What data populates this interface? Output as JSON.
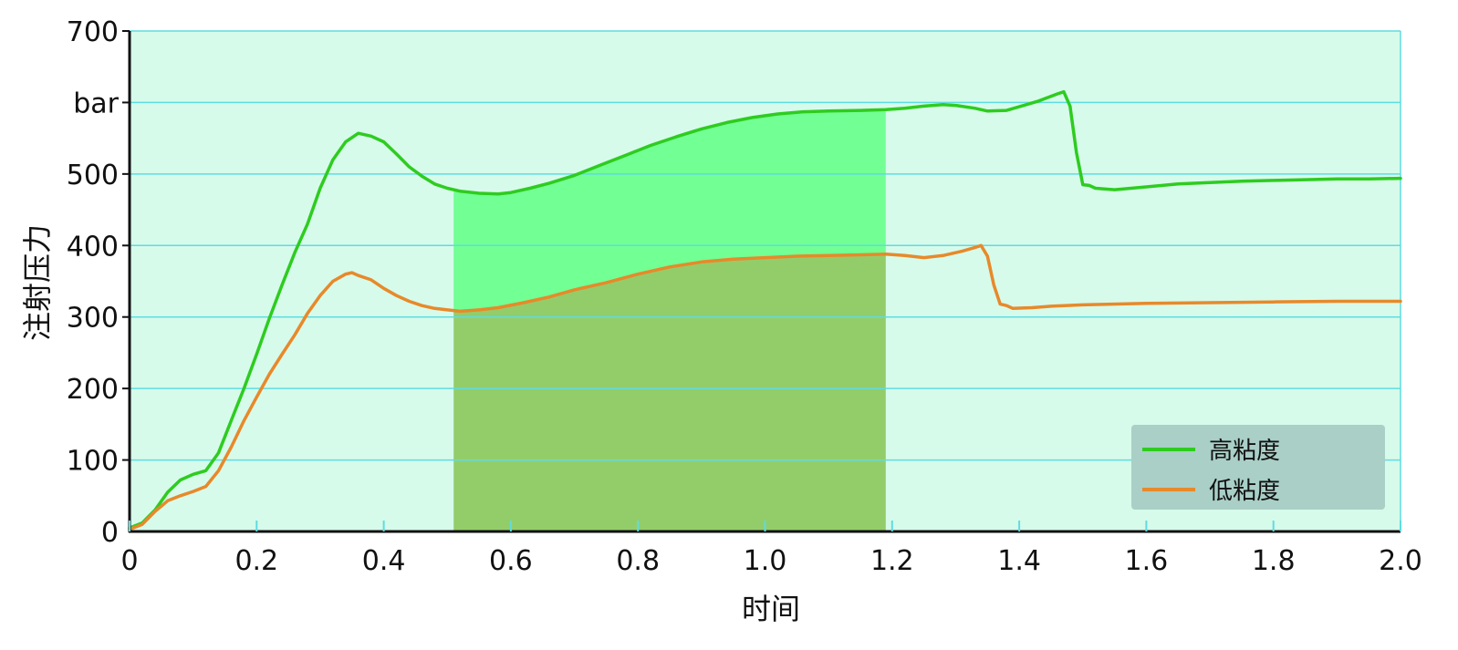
{
  "chart_data": {
    "type": "line",
    "xlabel": "时间",
    "ylabel": "注射压力",
    "yunit_tick": "bar",
    "xlim": [
      0,
      2.0
    ],
    "ylim": [
      0,
      700
    ],
    "xticks": [
      "0",
      "0.2",
      "0.4",
      "0.6",
      "0.8",
      "1.0",
      "1.2",
      "1.4",
      "1.6",
      "1.8",
      "2.0"
    ],
    "yticks": [
      "0",
      "100",
      "200",
      "300",
      "400",
      "500",
      "bar",
      "700"
    ],
    "grid": true,
    "legend_position": "bottom-right",
    "highlight_range": [
      0.51,
      1.19
    ],
    "series": [
      {
        "name": "高粘度",
        "color": "#2ecc1f",
        "points": [
          [
            0.0,
            5
          ],
          [
            0.02,
            12
          ],
          [
            0.04,
            30
          ],
          [
            0.06,
            55
          ],
          [
            0.08,
            72
          ],
          [
            0.1,
            80
          ],
          [
            0.12,
            85
          ],
          [
            0.14,
            110
          ],
          [
            0.16,
            155
          ],
          [
            0.18,
            200
          ],
          [
            0.2,
            248
          ],
          [
            0.22,
            298
          ],
          [
            0.24,
            345
          ],
          [
            0.26,
            390
          ],
          [
            0.28,
            430
          ],
          [
            0.3,
            480
          ],
          [
            0.32,
            520
          ],
          [
            0.34,
            545
          ],
          [
            0.36,
            557
          ],
          [
            0.38,
            553
          ],
          [
            0.4,
            545
          ],
          [
            0.42,
            528
          ],
          [
            0.44,
            510
          ],
          [
            0.46,
            497
          ],
          [
            0.48,
            486
          ],
          [
            0.5,
            480
          ],
          [
            0.52,
            476
          ],
          [
            0.55,
            473
          ],
          [
            0.58,
            472
          ],
          [
            0.6,
            474
          ],
          [
            0.63,
            480
          ],
          [
            0.66,
            487
          ],
          [
            0.7,
            498
          ],
          [
            0.74,
            512
          ],
          [
            0.78,
            526
          ],
          [
            0.82,
            540
          ],
          [
            0.86,
            552
          ],
          [
            0.9,
            563
          ],
          [
            0.94,
            572
          ],
          [
            0.98,
            579
          ],
          [
            1.02,
            584
          ],
          [
            1.06,
            587
          ],
          [
            1.1,
            588
          ],
          [
            1.15,
            589
          ],
          [
            1.19,
            590
          ],
          [
            1.22,
            592
          ],
          [
            1.25,
            595
          ],
          [
            1.28,
            597
          ],
          [
            1.3,
            596
          ],
          [
            1.33,
            592
          ],
          [
            1.35,
            588
          ],
          [
            1.38,
            589
          ],
          [
            1.4,
            594
          ],
          [
            1.43,
            602
          ],
          [
            1.46,
            612
          ],
          [
            1.47,
            615
          ],
          [
            1.48,
            595
          ],
          [
            1.49,
            530
          ],
          [
            1.5,
            485
          ],
          [
            1.51,
            484
          ],
          [
            1.52,
            480
          ],
          [
            1.55,
            478
          ],
          [
            1.6,
            482
          ],
          [
            1.65,
            486
          ],
          [
            1.7,
            488
          ],
          [
            1.75,
            490
          ],
          [
            1.8,
            491
          ],
          [
            1.85,
            492
          ],
          [
            1.9,
            493
          ],
          [
            1.95,
            493
          ],
          [
            2.0,
            494
          ]
        ]
      },
      {
        "name": "低粘度",
        "color": "#e8892a",
        "points": [
          [
            0.0,
            3
          ],
          [
            0.02,
            10
          ],
          [
            0.04,
            28
          ],
          [
            0.06,
            43
          ],
          [
            0.08,
            50
          ],
          [
            0.1,
            56
          ],
          [
            0.12,
            63
          ],
          [
            0.14,
            85
          ],
          [
            0.16,
            118
          ],
          [
            0.18,
            155
          ],
          [
            0.2,
            188
          ],
          [
            0.22,
            220
          ],
          [
            0.24,
            248
          ],
          [
            0.26,
            275
          ],
          [
            0.28,
            305
          ],
          [
            0.3,
            330
          ],
          [
            0.32,
            350
          ],
          [
            0.34,
            360
          ],
          [
            0.35,
            362
          ],
          [
            0.36,
            358
          ],
          [
            0.38,
            352
          ],
          [
            0.4,
            340
          ],
          [
            0.42,
            330
          ],
          [
            0.44,
            322
          ],
          [
            0.46,
            316
          ],
          [
            0.48,
            312
          ],
          [
            0.5,
            310
          ],
          [
            0.52,
            308
          ],
          [
            0.55,
            310
          ],
          [
            0.58,
            313
          ],
          [
            0.62,
            320
          ],
          [
            0.66,
            328
          ],
          [
            0.7,
            338
          ],
          [
            0.75,
            348
          ],
          [
            0.8,
            360
          ],
          [
            0.85,
            370
          ],
          [
            0.9,
            377
          ],
          [
            0.95,
            381
          ],
          [
            1.0,
            383
          ],
          [
            1.05,
            385
          ],
          [
            1.1,
            386
          ],
          [
            1.15,
            387
          ],
          [
            1.19,
            388
          ],
          [
            1.22,
            386
          ],
          [
            1.25,
            383
          ],
          [
            1.28,
            386
          ],
          [
            1.31,
            392
          ],
          [
            1.33,
            397
          ],
          [
            1.34,
            400
          ],
          [
            1.35,
            385
          ],
          [
            1.36,
            345
          ],
          [
            1.37,
            318
          ],
          [
            1.38,
            316
          ],
          [
            1.39,
            312
          ],
          [
            1.42,
            313
          ],
          [
            1.45,
            315
          ],
          [
            1.5,
            317
          ],
          [
            1.6,
            319
          ],
          [
            1.7,
            320
          ],
          [
            1.8,
            321
          ],
          [
            1.9,
            322
          ],
          [
            2.0,
            322
          ]
        ]
      }
    ]
  },
  "colors": {
    "plot_bg": "#d6fbeb",
    "grid": "#5fdce0",
    "axis": "#111111",
    "highlight_upper": "#72ff94",
    "highlight_lower": "#93cd6a",
    "legend_bg": "#a9cfc7"
  }
}
